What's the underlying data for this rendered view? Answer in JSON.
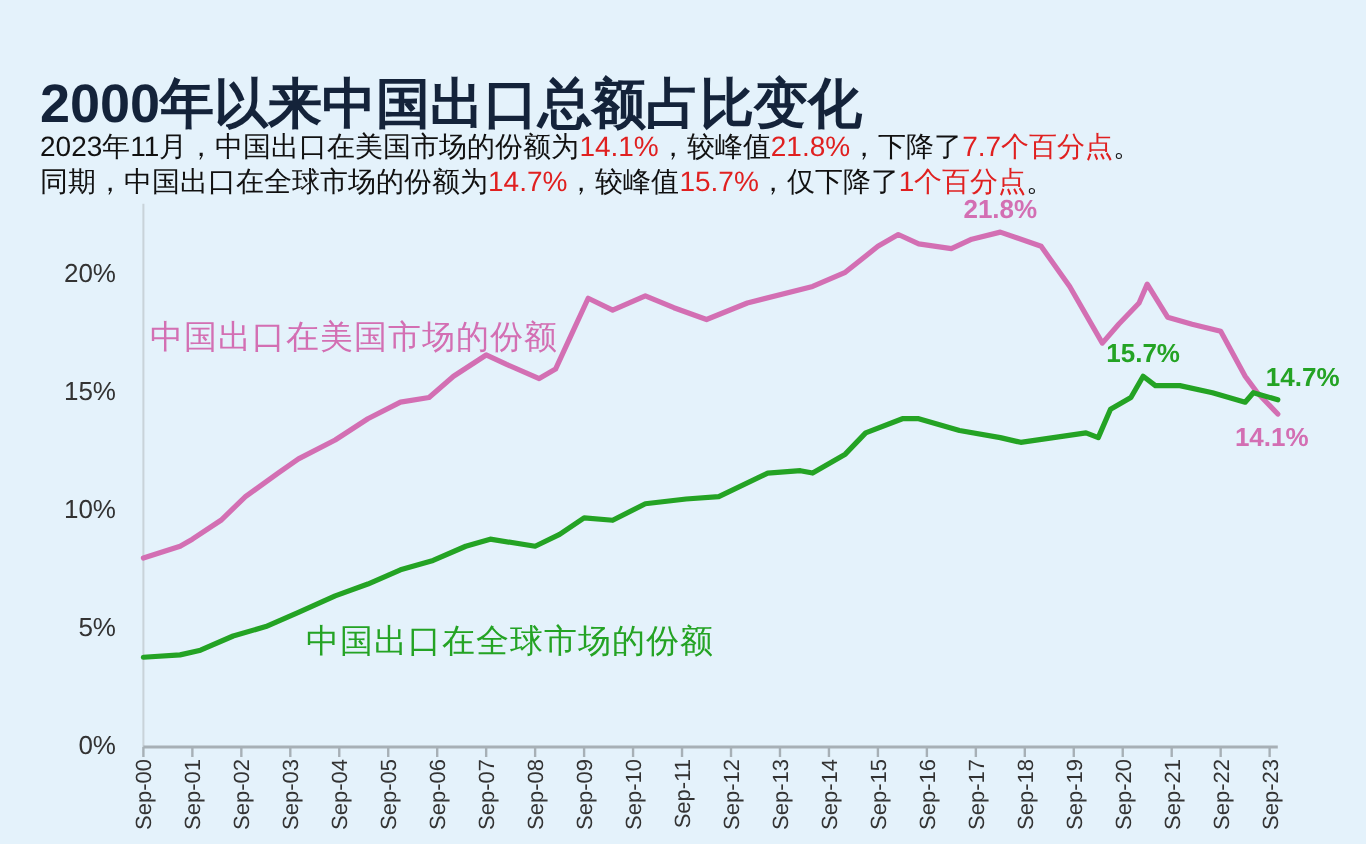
{
  "chart_data": {
    "type": "line",
    "title": "2000年以来中国出口总额占比变化",
    "subtitle": "2023年11月，中国出口在美国市场的份额为14.1%，较峰值21.8%，下降了7.7个百分点。同期，中国出口在全球市场的份额为14.7%，较峰值15.7%，仅下降了1个百分点。",
    "xlim": [
      "2000-09",
      "2023-11"
    ],
    "xticks": [
      {
        "value": "2000-09",
        "label": "Sep-00"
      },
      {
        "value": "2001-09",
        "label": "Sep-01"
      },
      {
        "value": "2002-09",
        "label": "Sep-02"
      },
      {
        "value": "2003-09",
        "label": "Sep-03"
      },
      {
        "value": "2004-09",
        "label": "Sep-04"
      },
      {
        "value": "2005-09",
        "label": "Sep-05"
      },
      {
        "value": "2006-09",
        "label": "Sep-06"
      },
      {
        "value": "2007-09",
        "label": "Sep-07"
      },
      {
        "value": "2008-09",
        "label": "Sep-08"
      },
      {
        "value": "2009-09",
        "label": "Sep-09"
      },
      {
        "value": "2010-09",
        "label": "Sep-10"
      },
      {
        "value": "2011-09",
        "label": "Sep-11"
      },
      {
        "value": "2012-09",
        "label": "Sep-12"
      },
      {
        "value": "2013-09",
        "label": "Sep-13"
      },
      {
        "value": "2014-09",
        "label": "Sep-14"
      },
      {
        "value": "2015-09",
        "label": "Sep-15"
      },
      {
        "value": "2016-09",
        "label": "Sep-16"
      },
      {
        "value": "2017-09",
        "label": "Sep-17"
      },
      {
        "value": "2018-09",
        "label": "Sep-18"
      },
      {
        "value": "2019-09",
        "label": "Sep-19"
      },
      {
        "value": "2020-09",
        "label": "Sep-20"
      },
      {
        "value": "2021-09",
        "label": "Sep-21"
      },
      {
        "value": "2022-09",
        "label": "Sep-22"
      },
      {
        "value": "2023-09",
        "label": "Sep-23"
      }
    ],
    "ylim": [
      0,
      23
    ],
    "yticks": [
      {
        "value": 0,
        "label": "0%"
      },
      {
        "value": 5,
        "label": "5%"
      },
      {
        "value": 10,
        "label": "10%"
      },
      {
        "value": 15,
        "label": "15%"
      },
      {
        "value": 20,
        "label": "20%"
      }
    ],
    "series": [
      {
        "name": "中国出口在美国市场的份额",
        "color": "#d36fb3",
        "x": [
          "2000-09",
          "2001-06",
          "2001-09",
          "2002-04",
          "2002-10",
          "2003-06",
          "2003-11",
          "2004-08",
          "2005-04",
          "2005-12",
          "2006-07",
          "2007-01",
          "2007-09",
          "2008-02",
          "2008-10",
          "2009-02",
          "2009-06",
          "2009-10",
          "2010-04",
          "2010-12",
          "2011-07",
          "2012-03",
          "2013-01",
          "2014-05",
          "2015-01",
          "2015-09",
          "2016-02",
          "2016-07",
          "2017-03",
          "2017-08",
          "2018-03",
          "2019-01",
          "2019-08",
          "2020-04",
          "2020-08",
          "2021-01",
          "2021-03",
          "2021-08",
          "2022-02",
          "2022-09",
          "2023-03",
          "2023-06",
          "2023-11"
        ],
        "values": [
          8.0,
          8.5,
          8.8,
          9.6,
          10.6,
          11.6,
          12.2,
          13.0,
          13.9,
          14.6,
          14.8,
          15.7,
          16.6,
          16.2,
          15.6,
          16.0,
          17.5,
          19.0,
          18.5,
          19.1,
          18.6,
          18.1,
          18.8,
          19.5,
          20.1,
          21.2,
          21.7,
          21.3,
          21.1,
          21.5,
          21.8,
          21.2,
          19.5,
          17.1,
          17.9,
          18.8,
          19.6,
          18.2,
          17.9,
          17.6,
          15.7,
          15.0,
          14.1
        ]
      },
      {
        "name": "中国出口在全球市场的份额",
        "color": "#24a324",
        "x": [
          "2000-09",
          "2001-06",
          "2001-11",
          "2002-07",
          "2003-03",
          "2003-11",
          "2004-08",
          "2005-04",
          "2005-12",
          "2006-08",
          "2007-04",
          "2007-10",
          "2008-09",
          "2009-03",
          "2009-09",
          "2010-04",
          "2010-12",
          "2011-10",
          "2012-06",
          "2013-06",
          "2014-02",
          "2014-05",
          "2015-01",
          "2015-06",
          "2016-03",
          "2016-07",
          "2017-05",
          "2018-03",
          "2018-08",
          "2019-04",
          "2019-12",
          "2020-03",
          "2020-06",
          "2020-11",
          "2021-02",
          "2021-05",
          "2021-11",
          "2022-07",
          "2023-03",
          "2023-05",
          "2023-11"
        ],
        "values": [
          3.8,
          3.9,
          4.1,
          4.7,
          5.1,
          5.7,
          6.4,
          6.9,
          7.5,
          7.9,
          8.5,
          8.8,
          8.5,
          9.0,
          9.7,
          9.6,
          10.3,
          10.5,
          10.6,
          11.6,
          11.7,
          11.6,
          12.4,
          13.3,
          13.9,
          13.9,
          13.4,
          13.1,
          12.9,
          13.1,
          13.3,
          13.1,
          14.3,
          14.8,
          15.7,
          15.3,
          15.3,
          15.0,
          14.6,
          15.0,
          14.7
        ]
      }
    ],
    "annotations": [
      {
        "text": "21.8%",
        "x": "2018-03",
        "y": 21.8
      },
      {
        "text": "15.7%",
        "x": "2021-02",
        "y": 15.7
      },
      {
        "text": "14.7%",
        "x": "2023-11",
        "y": 14.7
      },
      {
        "text": "14.1%",
        "x": "2023-11",
        "y": 14.1
      }
    ]
  }
}
